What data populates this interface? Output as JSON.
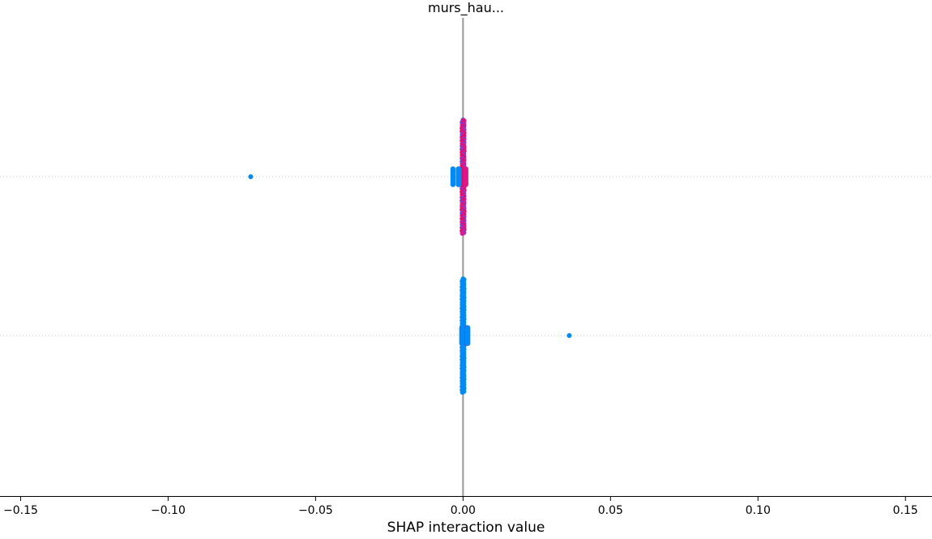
{
  "chart_data": {
    "type": "scatter",
    "title": "murs_hau...",
    "xlabel": "SHAP interaction value",
    "ylabel": "",
    "xlim": [
      -0.157,
      0.159
    ],
    "grid": false,
    "legend": "none",
    "x_ticks": [
      -0.15,
      -0.1,
      -0.05,
      0.0,
      0.05,
      0.1,
      0.15
    ],
    "x_tick_labels": [
      "−0.15",
      "−0.10",
      "−0.05",
      "0.00",
      "0.05",
      "0.10",
      "0.15"
    ],
    "rows": [
      {
        "name": "",
        "outliers": [
          {
            "x": -0.072,
            "color": "#008bfb"
          }
        ],
        "swarm": [
          {
            "x": 0.0,
            "color": "#ff0052"
          },
          {
            "x": 0.0005,
            "color": "#e0158a"
          },
          {
            "x": -0.001,
            "color": "#008bfb"
          },
          {
            "x": -0.002,
            "color": "#008bfb"
          },
          {
            "x": -0.003,
            "color": "#008bfb"
          }
        ]
      },
      {
        "name": "",
        "outliers": [
          {
            "x": 0.036,
            "color": "#008bfb"
          }
        ],
        "swarm": [
          {
            "x": 0.0,
            "color": "#008bfb"
          },
          {
            "x": 0.001,
            "color": "#ff0052"
          },
          {
            "x": 0.002,
            "color": "#008bfb"
          }
        ]
      }
    ],
    "colors": {
      "low": "#008bfb",
      "high": "#ff0052",
      "zero_line": "#999999",
      "row_guide": "#cccccc"
    }
  }
}
